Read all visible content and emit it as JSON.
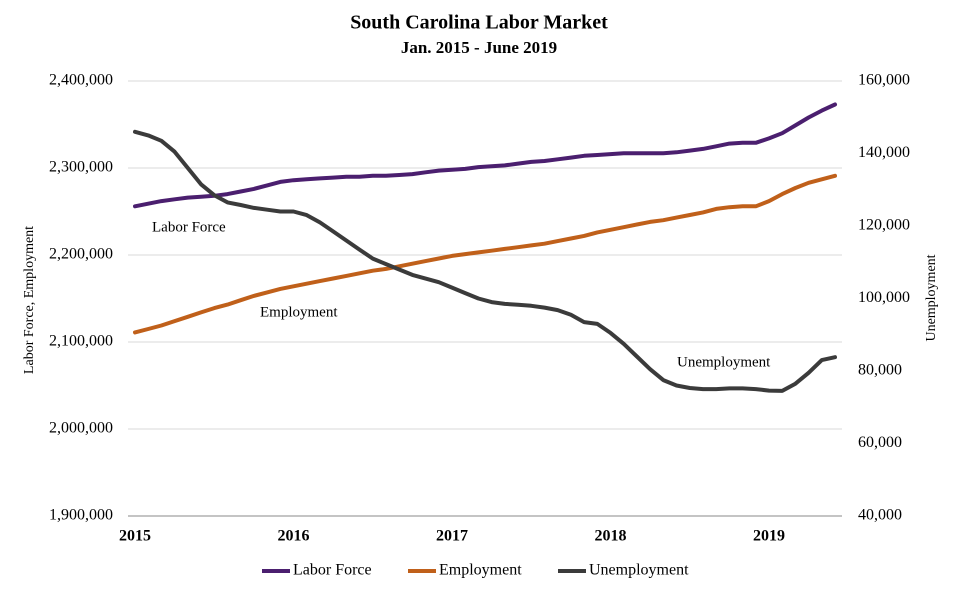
{
  "chart_data": {
    "type": "line",
    "title": "South Carolina Labor Market",
    "subtitle": "Jan. 2015 - June 2019",
    "y_label": "Labor Force, Employment",
    "y2_label": "Unemployment",
    "categories": [
      "2015",
      null,
      null,
      null,
      null,
      null,
      null,
      null,
      null,
      null,
      null,
      null,
      "2016",
      null,
      null,
      null,
      null,
      null,
      null,
      null,
      null,
      null,
      null,
      null,
      "2017",
      null,
      null,
      null,
      null,
      null,
      null,
      null,
      null,
      null,
      null,
      null,
      "2018",
      null,
      null,
      null,
      null,
      null,
      null,
      null,
      null,
      null,
      null,
      null,
      "2019",
      null,
      null,
      null,
      null,
      null
    ],
    "series": [
      {
        "name": "Labor Force",
        "color": "#4b1f6f",
        "values": [
          2256000,
          2259000,
          2262000,
          2264000,
          2266000,
          2267000,
          2268000,
          2270000,
          2273000,
          2276000,
          2280000,
          2284000,
          2286000,
          2287000,
          2288000,
          2289000,
          2290000,
          2290000,
          2291000,
          2291000,
          2292000,
          2293000,
          2295000,
          2297000,
          2298000,
          2299000,
          2301000,
          2302000,
          2303000,
          2305000,
          2307000,
          2308000,
          2310000,
          2312000,
          2314000,
          2315000,
          2316000,
          2317000,
          2317000,
          2317000,
          2317000,
          2318000,
          2320000,
          2322000,
          2325000,
          2328000,
          2329000,
          2329000,
          2334000,
          2340000,
          2349000,
          2358000,
          2366000,
          2373000
        ]
      },
      {
        "name": "Employment",
        "color": "#c0601a",
        "values": [
          2111000,
          2115000,
          2119000,
          2124000,
          2129000,
          2134000,
          2139000,
          2143000,
          2148000,
          2153000,
          2157000,
          2161000,
          2164000,
          2167000,
          2170000,
          2173000,
          2176000,
          2179000,
          2182000,
          2184000,
          2187000,
          2190000,
          2193000,
          2196000,
          2199000,
          2201000,
          2203000,
          2205000,
          2207000,
          2209000,
          2211000,
          2213000,
          2216000,
          2219000,
          2222000,
          2226000,
          2229000,
          2232000,
          2235000,
          2238000,
          2240000,
          2243000,
          2246000,
          2249000,
          2253000,
          2255000,
          2256000,
          2256000,
          2262000,
          2270000,
          2277000,
          2283000,
          2287000,
          2291000
        ]
      },
      {
        "name": "Unemployment",
        "color": "#3b3b3b",
        "axis": "y2",
        "values": [
          146000,
          145000,
          143500,
          140500,
          136000,
          131500,
          128500,
          126500,
          125800,
          125000,
          124500,
          124000,
          124000,
          123000,
          121000,
          118500,
          116000,
          113500,
          111000,
          109500,
          108000,
          106500,
          105500,
          104500,
          103000,
          101500,
          100000,
          99000,
          98500,
          98300,
          98000,
          97500,
          96800,
          95500,
          93500,
          93000,
          90500,
          87500,
          84000,
          80500,
          77500,
          76000,
          75300,
          75000,
          75000,
          75200,
          75200,
          75000,
          74600,
          74500,
          76500,
          79500,
          83000,
          83800
        ]
      }
    ],
    "annotations": [
      "Labor Force",
      "Employment",
      "Unemployment"
    ],
    "ylim": [
      1900000,
      2400000
    ],
    "yticks": [
      {
        "value": 1900000,
        "label": "1,900,000"
      },
      {
        "value": 2000000,
        "label": "2,000,000"
      },
      {
        "value": 2100000,
        "label": "2,100,000"
      },
      {
        "value": 2200000,
        "label": "2,200,000"
      },
      {
        "value": 2300000,
        "label": "2,300,000"
      },
      {
        "value": 2400000,
        "label": "2,400,000"
      }
    ],
    "y2lim": [
      40000,
      160000
    ],
    "y2ticks": [
      {
        "value": 40000,
        "label": "40,000"
      },
      {
        "value": 60000,
        "label": "60,000"
      },
      {
        "value": 80000,
        "label": "80,000"
      },
      {
        "value": 100000,
        "label": "100,000"
      },
      {
        "value": 120000,
        "label": "120,000"
      },
      {
        "value": 140000,
        "label": "140,000"
      },
      {
        "value": 160000,
        "label": "160,000"
      }
    ],
    "grid": true,
    "legend": "bottom"
  }
}
